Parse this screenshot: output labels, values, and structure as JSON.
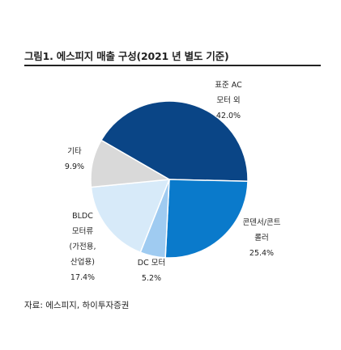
{
  "title": "그림1.  에스피지 매출 구성(2021 년 별도 기준)",
  "source": "자료: 에스피지, 하이투자증권",
  "chart_data": {
    "type": "pie",
    "title": "그림1.  에스피지 매출 구성(2021 년 별도 기준)",
    "slices": [
      {
        "label_lines": [
          "표준 AC",
          "모터 외"
        ],
        "value": 42.0,
        "value_label": "42.0%",
        "color": "#0a4586"
      },
      {
        "label_lines": [
          "콘덴서/콘트",
          "롤러"
        ],
        "value": 25.4,
        "value_label": "25.4%",
        "color": "#0a7acb"
      },
      {
        "label_lines": [
          "DC 모터"
        ],
        "value": 5.2,
        "value_label": "5.2%",
        "color": "#9fcbf1"
      },
      {
        "label_lines": [
          "BLDC",
          "모터류",
          "(가전용,",
          "산업용)"
        ],
        "value": 17.4,
        "value_label": "17.4%",
        "color": "#d7eaf9"
      },
      {
        "label_lines": [
          "기타"
        ],
        "value": 9.9,
        "value_label": "9.9%",
        "color": "#d9d9d9"
      }
    ],
    "legend": "none"
  }
}
